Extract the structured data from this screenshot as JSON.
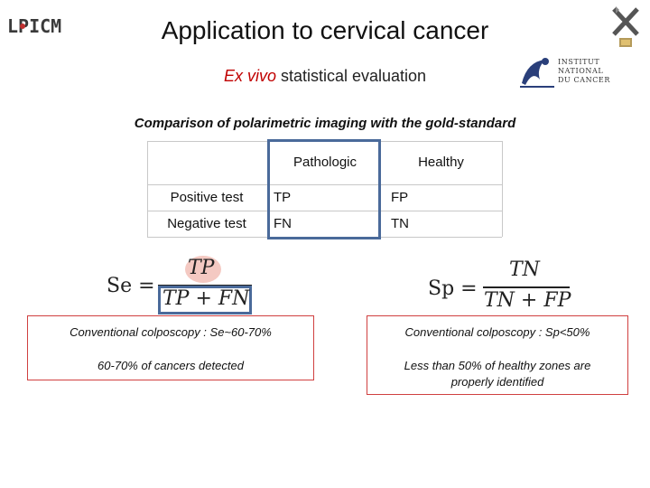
{
  "slide": {
    "title": "Application to cervical cancer",
    "subtitle_em": "Ex vivo",
    "subtitle_rest": " statistical evaluation",
    "section_heading": "Comparison of polarimetric imaging with the gold-standard"
  },
  "logos": {
    "lpicm_text": "LPICM",
    "inca_lines": [
      "INSTITUT",
      "NATIONAL",
      "DU CANCER"
    ]
  },
  "matrix": {
    "col_headers": [
      "Pathologic",
      "Healthy"
    ],
    "rows": [
      {
        "label": "Positive test",
        "pathologic": "TP",
        "healthy": "FP"
      },
      {
        "label": "Negative test",
        "pathologic": "FN",
        "healthy": "TN"
      }
    ]
  },
  "formulas": {
    "se": {
      "lhs": "Se =",
      "num": "TP",
      "den": "TP + FN"
    },
    "sp": {
      "lhs": "Sp =",
      "num": "TN",
      "den": "TN + FP"
    }
  },
  "notes": {
    "left_title": "Conventional colposcopy : Se~60-70%",
    "left_body": "60-70% of cancers detected",
    "right_title": "Conventional colposcopy : Sp<50%",
    "right_body_1": "Less than 50% of healthy zones are",
    "right_body_2": "properly identified"
  },
  "colors": {
    "accent_red": "#c00000",
    "highlight_blue": "#4a6a9a",
    "circle_pink": "#f4c9c2",
    "box_red": "#d04040"
  }
}
